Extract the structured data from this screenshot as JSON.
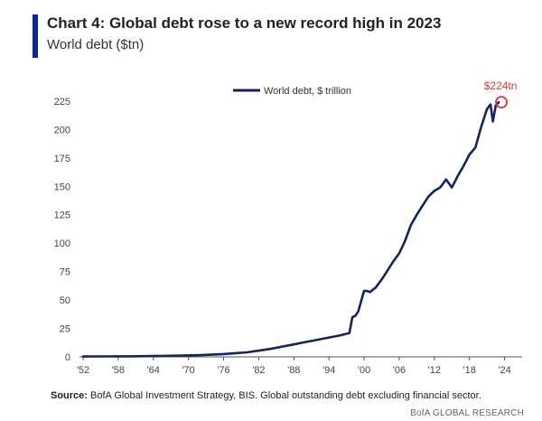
{
  "header": {
    "title": "Chart 4: Global debt rose to a new record high in 2023",
    "subtitle": "World debt ($tn)"
  },
  "footer": {
    "source_label": "Source:",
    "source_text": "BofA Global Investment Strategy, BIS. Global outstanding debt excluding financial sector.",
    "credit": "BofA GLOBAL RESEARCH"
  },
  "colors": {
    "accent": "#0a2a8c",
    "line": "#15245e",
    "annotation": "#d33a3a",
    "axis": "#555555"
  },
  "chart_data": {
    "type": "line",
    "title": "Chart 4: Global debt rose to a new record high in 2023",
    "subtitle": "World debt ($tn)",
    "xlabel": "",
    "ylabel": "",
    "xlim": [
      1952,
      2027
    ],
    "ylim": [
      0,
      240
    ],
    "grid": false,
    "legend_position": "top-center",
    "x_tick_labels": [
      "'52",
      "'58",
      "'64",
      "'70",
      "'76",
      "'82",
      "'88",
      "'94",
      "'00",
      "'06",
      "'12",
      "'18",
      "'24"
    ],
    "x_tick_values": [
      1952,
      1958,
      1964,
      1970,
      1976,
      1982,
      1988,
      1994,
      2000,
      2006,
      2012,
      2018,
      2024
    ],
    "y_ticks": [
      0,
      25,
      50,
      75,
      100,
      125,
      150,
      175,
      200,
      225
    ],
    "annotation": {
      "text": "$224tn",
      "x": 2023,
      "y": 224
    },
    "series": [
      {
        "name": "World debt, $ trillion",
        "x": [
          1952,
          1956,
          1960,
          1964,
          1968,
          1972,
          1976,
          1980,
          1984,
          1988,
          1990,
          1992,
          1994,
          1996,
          1997.5,
          1998,
          1998.5,
          1999,
          2000,
          2000.5,
          2001,
          2002,
          2003,
          2004,
          2005,
          2006,
          2007,
          2008,
          2009,
          2010,
          2011,
          2012,
          2013,
          2014,
          2015,
          2016,
          2017,
          2018,
          2019,
          2020,
          2021,
          2021.6,
          2022,
          2022.5,
          2023
        ],
        "y": [
          0.3,
          0.4,
          0.5,
          0.7,
          1.0,
          1.5,
          2.5,
          4,
          7,
          11,
          13,
          15,
          17,
          19,
          21,
          35,
          36,
          40,
          58,
          58,
          57,
          61,
          68,
          76,
          84,
          91,
          102,
          116,
          125,
          133,
          141,
          146,
          149,
          156,
          149,
          159,
          168,
          178,
          184,
          202,
          218,
          222,
          207,
          221,
          224
        ]
      }
    ]
  }
}
